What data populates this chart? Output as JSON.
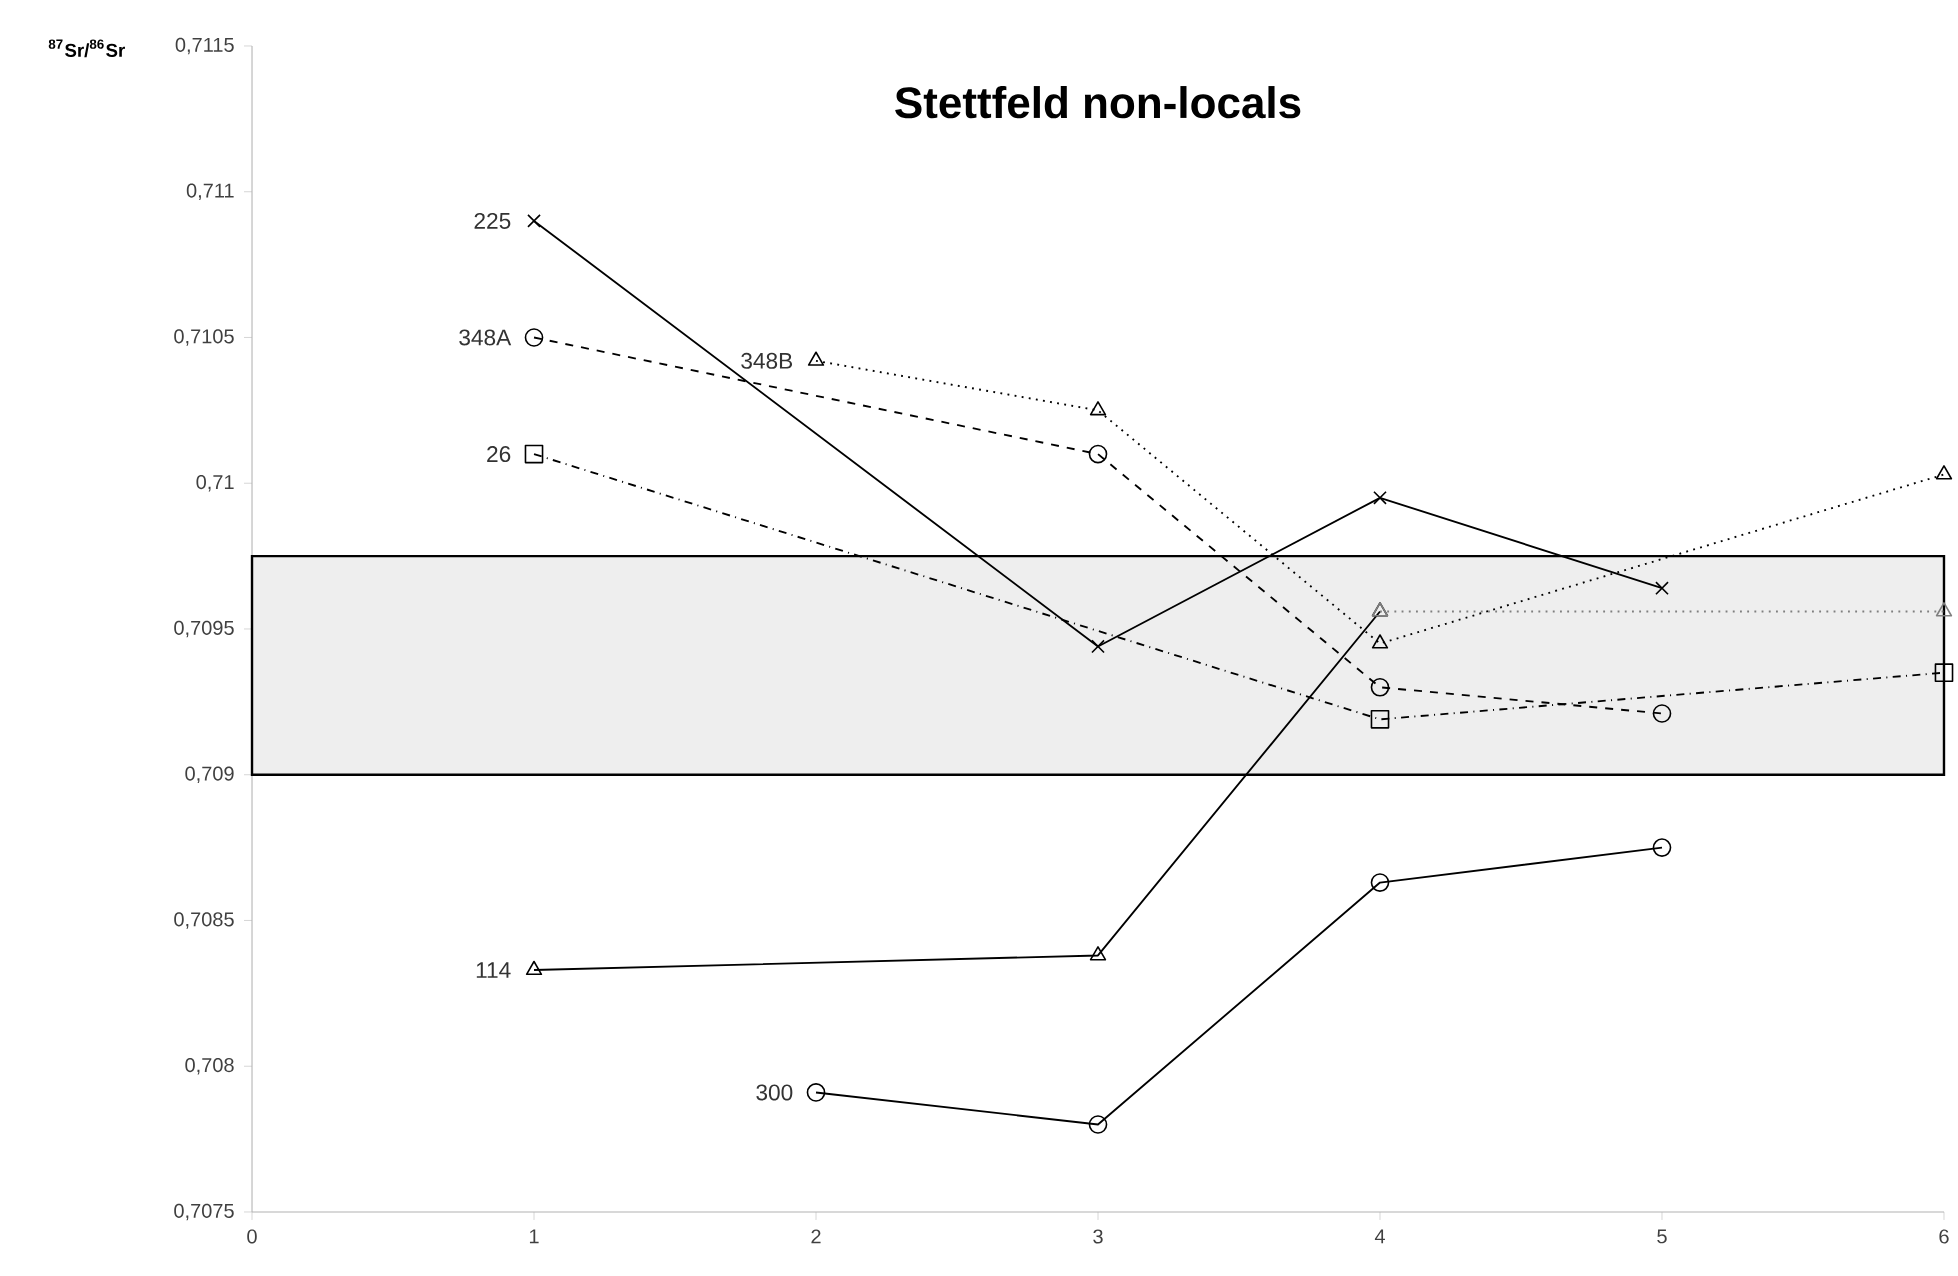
{
  "chart_data": {
    "type": "line",
    "title": "Stettfeld non-locals",
    "ylabel": "$^{87}$Sr/$^{86}$Sr",
    "xlim": [
      0,
      6
    ],
    "xticks": [
      0,
      1,
      2,
      3,
      4,
      5,
      6
    ],
    "ylim": [
      0.7075,
      0.7115
    ],
    "yticks": [
      {
        "value": 0.7075,
        "label": "0,7075"
      },
      {
        "value": 0.708,
        "label": "0,708"
      },
      {
        "value": 0.7085,
        "label": "0,7085"
      },
      {
        "value": 0.709,
        "label": "0,709"
      },
      {
        "value": 0.7095,
        "label": "0,7095"
      },
      {
        "value": 0.71,
        "label": "0,71"
      },
      {
        "value": 0.7105,
        "label": "0,7105"
      },
      {
        "value": 0.711,
        "label": "0,711"
      },
      {
        "value": 0.7115,
        "label": "0,7115"
      }
    ],
    "grid": false,
    "bands": [
      {
        "axis": "y",
        "from": 0.709,
        "to": 0.70975,
        "color": "#eeeeee"
      }
    ],
    "series": [
      {
        "name": "225",
        "color": "#000000",
        "x": [
          1,
          3,
          4,
          5
        ],
        "values": [
          0.7109,
          0.70944,
          0.70995,
          0.70964
        ],
        "marker": "cross",
        "line_style": "solid"
      },
      {
        "name": "348A",
        "color": "#000000",
        "x": [
          1,
          3,
          4,
          5
        ],
        "values": [
          0.7105,
          0.7101,
          0.7093,
          0.70921
        ],
        "marker": "circle",
        "line_style": "dashed"
      },
      {
        "name": "348B",
        "color": "#000000",
        "x": [
          2,
          3,
          4,
          6
        ],
        "values": [
          0.71042,
          0.71025,
          0.70945,
          0.71003
        ],
        "marker": "triangle",
        "line_style": "dotted"
      },
      {
        "name": "26",
        "color": "#000000",
        "x": [
          1,
          4,
          6
        ],
        "values": [
          0.7101,
          0.70919,
          0.70935
        ],
        "marker": "square",
        "line_style": "dashdot"
      },
      {
        "name": "114",
        "color": "#000000",
        "x": [
          1,
          3,
          4
        ],
        "values": [
          0.70833,
          0.70838,
          0.70956
        ],
        "marker": "triangle",
        "line_style": "solid"
      },
      {
        "color": "#7f7f7f",
        "x": [
          4,
          6
        ],
        "values": [
          0.70956,
          0.70956
        ],
        "marker": "triangle",
        "line_style": "dotted"
      },
      {
        "name": "300",
        "color": "#000000",
        "x": [
          2,
          3,
          4,
          5
        ],
        "values": [
          0.70791,
          0.7078,
          0.70863,
          0.70875
        ],
        "marker": "circle",
        "line_style": "solid"
      }
    ]
  }
}
